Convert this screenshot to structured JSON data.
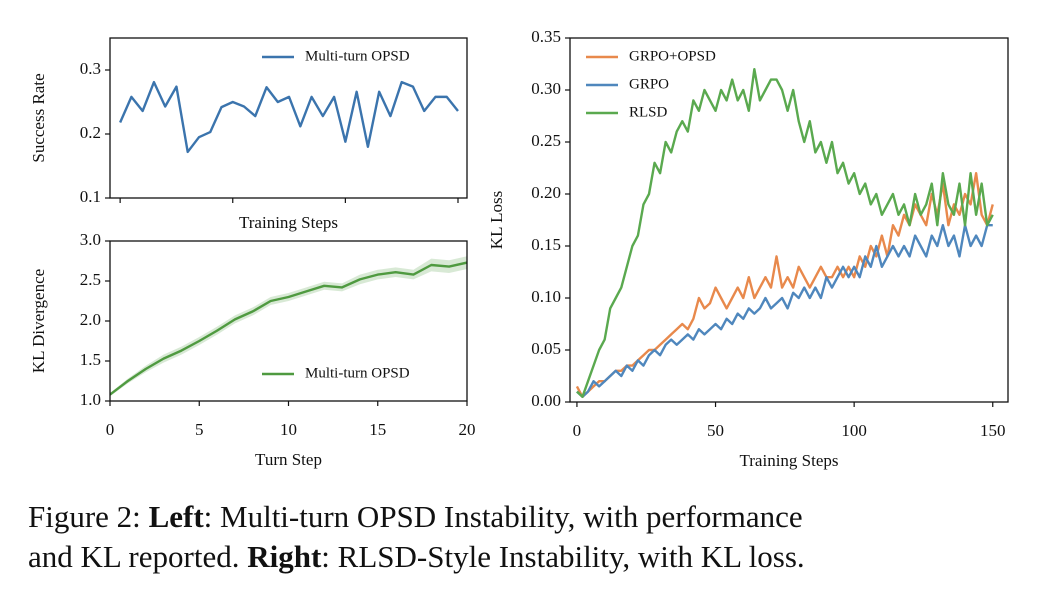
{
  "chart_data": [
    {
      "type": "line",
      "ylabel": "Success Rate",
      "xlabel": "Training Steps",
      "legend": "upper right",
      "xlim": [
        -0.9,
        30.8
      ],
      "xticks": [
        0,
        10,
        20,
        30
      ],
      "xticklabels": false,
      "ylim": [
        0.1,
        0.35
      ],
      "yticks": [
        0.1,
        0.2,
        0.3
      ],
      "x": [
        0,
        1,
        2,
        3,
        4,
        5,
        6,
        7,
        8,
        9,
        10,
        11,
        12,
        13,
        14,
        15,
        16,
        17,
        18,
        19,
        20,
        21,
        22,
        23,
        24,
        25,
        26,
        27,
        28,
        29,
        30
      ],
      "series": [
        {
          "name": "Multi-turn OPSD",
          "color": "#3b74ad",
          "values": [
            0.218,
            0.258,
            0.236,
            0.281,
            0.243,
            0.274,
            0.172,
            0.195,
            0.203,
            0.242,
            0.25,
            0.243,
            0.228,
            0.273,
            0.25,
            0.258,
            0.212,
            0.258,
            0.228,
            0.258,
            0.188,
            0.266,
            0.18,
            0.266,
            0.228,
            0.281,
            0.274,
            0.236,
            0.258,
            0.258,
            0.236
          ]
        }
      ]
    },
    {
      "type": "line",
      "ylabel": "KL Divergence",
      "xlabel": "Turn Step",
      "legend": "lower right",
      "xlim": [
        0,
        20
      ],
      "xticks": [
        0,
        5,
        10,
        15,
        20
      ],
      "ylim": [
        1,
        3
      ],
      "yticks": [
        {
          "value": 1,
          "label": "1.0"
        },
        1.5,
        {
          "value": 2,
          "label": "2.0"
        },
        2.5,
        {
          "value": 3,
          "label": "3.0"
        }
      ],
      "x": [
        0,
        1,
        2,
        3,
        4,
        5,
        6,
        7,
        8,
        9,
        10,
        11,
        12,
        13,
        14,
        15,
        16,
        17,
        18,
        19,
        20
      ],
      "series": [
        {
          "name": "Multi-turn OPSD",
          "color": "#4f9a40",
          "values": [
            1.08,
            1.25,
            1.4,
            1.53,
            1.63,
            1.75,
            1.88,
            2.02,
            2.12,
            2.25,
            2.3,
            2.37,
            2.44,
            2.42,
            2.52,
            2.58,
            2.61,
            2.58,
            2.7,
            2.68,
            2.73
          ],
          "errors": [
            0.02,
            0.03,
            0.04,
            0.05,
            0.05,
            0.05,
            0.05,
            0.05,
            0.05,
            0.05,
            0.05,
            0.05,
            0.05,
            0.05,
            0.06,
            0.06,
            0.06,
            0.06,
            0.08,
            0.08,
            0.08
          ]
        }
      ]
    },
    {
      "type": "line",
      "ylabel": "KL Loss",
      "xlabel": "Training Steps",
      "legend": "upper left",
      "xlim": [
        -2.5,
        155.5
      ],
      "xticks": [
        0,
        50,
        100,
        150
      ],
      "ylim": [
        0,
        0.35
      ],
      "yticks": [
        {
          "value": 0,
          "label": "0.00"
        },
        {
          "value": 0.05,
          "label": "0.05"
        },
        {
          "value": 0.1,
          "label": "0.10"
        },
        {
          "value": 0.15,
          "label": "0.15"
        },
        {
          "value": 0.2,
          "label": "0.20"
        },
        {
          "value": 0.25,
          "label": "0.25"
        },
        {
          "value": 0.3,
          "label": "0.30"
        },
        {
          "value": 0.35,
          "label": "0.35"
        }
      ],
      "x": [
        0,
        2,
        4,
        6,
        8,
        10,
        12,
        14,
        16,
        18,
        20,
        22,
        24,
        26,
        28,
        30,
        32,
        34,
        36,
        38,
        40,
        42,
        44,
        46,
        48,
        50,
        52,
        54,
        56,
        58,
        60,
        62,
        64,
        66,
        68,
        70,
        72,
        74,
        76,
        78,
        80,
        82,
        84,
        86,
        88,
        90,
        92,
        94,
        96,
        98,
        100,
        102,
        104,
        106,
        108,
        110,
        112,
        114,
        116,
        118,
        120,
        122,
        124,
        126,
        128,
        130,
        132,
        134,
        136,
        138,
        140,
        142,
        144,
        146,
        148,
        150
      ],
      "series": [
        {
          "name": "GRPO+OPSD",
          "color": "#e8894c",
          "values": [
            0.015,
            0.005,
            0.01,
            0.015,
            0.02,
            0.02,
            0.025,
            0.03,
            0.03,
            0.035,
            0.035,
            0.04,
            0.045,
            0.05,
            0.05,
            0.055,
            0.06,
            0.065,
            0.07,
            0.075,
            0.07,
            0.08,
            0.1,
            0.09,
            0.095,
            0.11,
            0.1,
            0.09,
            0.1,
            0.11,
            0.1,
            0.12,
            0.1,
            0.11,
            0.12,
            0.11,
            0.14,
            0.11,
            0.12,
            0.11,
            0.13,
            0.12,
            0.11,
            0.12,
            0.13,
            0.12,
            0.12,
            0.13,
            0.12,
            0.13,
            0.12,
            0.14,
            0.13,
            0.15,
            0.14,
            0.16,
            0.14,
            0.17,
            0.16,
            0.18,
            0.17,
            0.19,
            0.18,
            0.17,
            0.2,
            0.18,
            0.21,
            0.17,
            0.19,
            0.18,
            0.2,
            0.19,
            0.22,
            0.18,
            0.17,
            0.19
          ]
        },
        {
          "name": "GRPO",
          "color": "#4f87bd",
          "values": [
            0.01,
            0.005,
            0.01,
            0.02,
            0.015,
            0.02,
            0.025,
            0.03,
            0.025,
            0.035,
            0.03,
            0.04,
            0.035,
            0.045,
            0.05,
            0.045,
            0.055,
            0.06,
            0.055,
            0.06,
            0.065,
            0.06,
            0.07,
            0.065,
            0.07,
            0.075,
            0.07,
            0.08,
            0.075,
            0.085,
            0.08,
            0.09,
            0.085,
            0.09,
            0.1,
            0.09,
            0.095,
            0.1,
            0.09,
            0.105,
            0.1,
            0.11,
            0.1,
            0.11,
            0.1,
            0.12,
            0.11,
            0.12,
            0.13,
            0.12,
            0.13,
            0.12,
            0.14,
            0.13,
            0.15,
            0.13,
            0.14,
            0.15,
            0.14,
            0.15,
            0.14,
            0.16,
            0.15,
            0.14,
            0.16,
            0.15,
            0.17,
            0.15,
            0.16,
            0.14,
            0.17,
            0.15,
            0.16,
            0.15,
            0.17,
            0.17
          ]
        },
        {
          "name": "RLSD",
          "color": "#5aa94f",
          "values": [
            0.01,
            0.005,
            0.02,
            0.035,
            0.05,
            0.06,
            0.09,
            0.1,
            0.11,
            0.13,
            0.15,
            0.16,
            0.19,
            0.2,
            0.23,
            0.22,
            0.25,
            0.24,
            0.26,
            0.27,
            0.26,
            0.29,
            0.28,
            0.3,
            0.29,
            0.28,
            0.3,
            0.29,
            0.31,
            0.29,
            0.3,
            0.28,
            0.32,
            0.29,
            0.3,
            0.31,
            0.31,
            0.3,
            0.28,
            0.3,
            0.27,
            0.25,
            0.27,
            0.24,
            0.25,
            0.23,
            0.25,
            0.22,
            0.23,
            0.21,
            0.22,
            0.2,
            0.21,
            0.19,
            0.2,
            0.18,
            0.19,
            0.2,
            0.18,
            0.19,
            0.17,
            0.2,
            0.18,
            0.19,
            0.21,
            0.17,
            0.22,
            0.19,
            0.18,
            0.21,
            0.17,
            0.22,
            0.18,
            0.21,
            0.17,
            0.18
          ]
        }
      ]
    }
  ],
  "caption": {
    "lines": [
      [
        {
          "text": "Figure 2: ",
          "bold": false
        },
        {
          "text": "Left",
          "bold": true
        },
        {
          "text": ": Multi-turn OPSD Instability, with performance",
          "bold": false
        }
      ],
      [
        {
          "text": "and KL reported. ",
          "bold": false
        },
        {
          "text": "Right",
          "bold": true
        },
        {
          "text": ": RLSD-Style Instability, with KL loss.",
          "bold": false
        }
      ]
    ]
  }
}
